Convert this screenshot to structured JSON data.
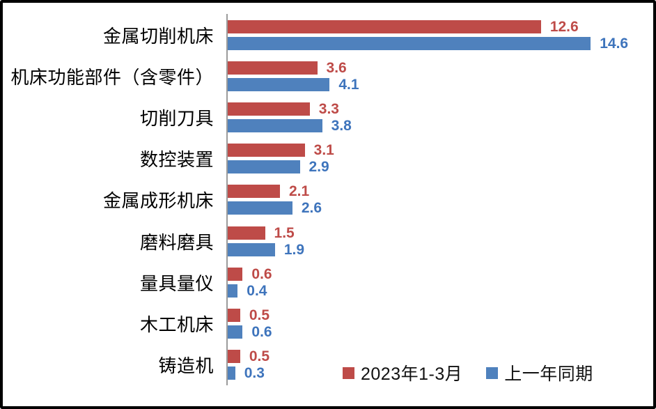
{
  "frame": {
    "border_color": "#000000",
    "background": "#ffffff",
    "axis_color": "#9b9b9b"
  },
  "chart_data": {
    "type": "bar",
    "orientation": "horizontal",
    "title": "",
    "xlabel": "",
    "ylabel": "",
    "categories": [
      "金属切削机床",
      "机床功能部件（含零件）",
      "切削刀具",
      "数控装置",
      "金属成形机床",
      "磨料磨具",
      "量具量仪",
      "木工机床",
      "铸造机"
    ],
    "series": [
      {
        "name": "2023年1-3月",
        "color": "#be4b48",
        "label_color": "#be4b48",
        "values": [
          12.6,
          3.6,
          3.3,
          3.1,
          2.1,
          1.5,
          0.6,
          0.5,
          0.5
        ]
      },
      {
        "name": "上一年同期",
        "color": "#4f81bd",
        "label_color": "#3e74bc",
        "values": [
          14.6,
          4.1,
          3.8,
          2.9,
          2.6,
          1.9,
          0.4,
          0.6,
          0.3
        ]
      }
    ],
    "value_labels": true,
    "xlim": [
      0,
      14.6
    ],
    "grid": false,
    "legend_position": "bottom"
  }
}
